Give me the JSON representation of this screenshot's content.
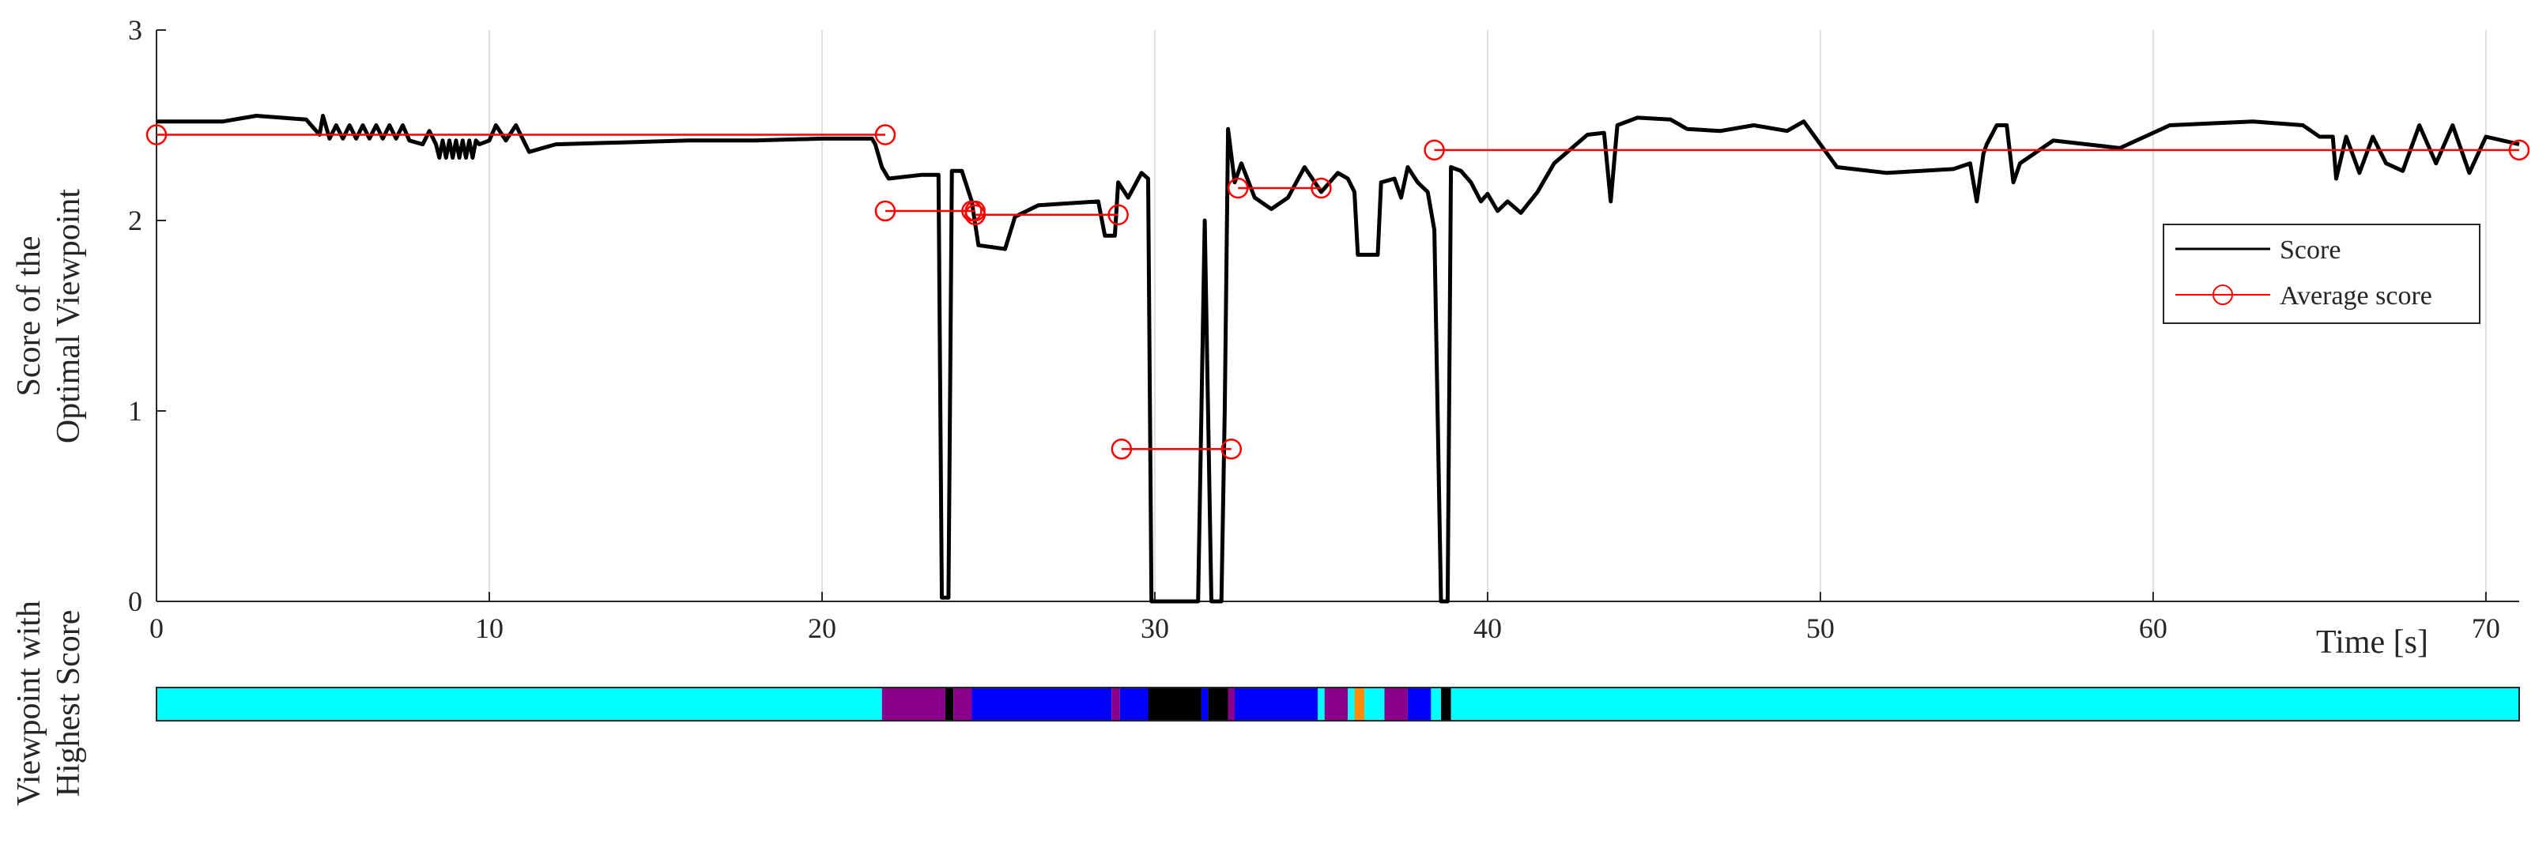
{
  "chart_data": {
    "type": "line",
    "xlabel": "Time [s]",
    "ylabel_lines": [
      "Score of the",
      "Optimal Viewpoint"
    ],
    "bar_label_lines": [
      "Viewpoint with",
      "Highest Score"
    ],
    "xlim": [
      0,
      71
    ],
    "ylim": [
      0,
      3
    ],
    "x_ticks": [
      0,
      10,
      20,
      30,
      40,
      50,
      60,
      70
    ],
    "y_ticks": [
      0,
      1,
      2,
      3
    ],
    "grid_x": true,
    "legend": {
      "placement": "right",
      "entries": [
        "Score",
        "Average score"
      ]
    },
    "series": [
      {
        "name": "Score",
        "color": "#000000",
        "points": [
          [
            0,
            2.52
          ],
          [
            2,
            2.52
          ],
          [
            3,
            2.55
          ],
          [
            4.5,
            2.53
          ],
          [
            4.9,
            2.45
          ],
          [
            5,
            2.55
          ],
          [
            5.2,
            2.43
          ],
          [
            5.4,
            2.5
          ],
          [
            5.6,
            2.43
          ],
          [
            5.8,
            2.5
          ],
          [
            6,
            2.43
          ],
          [
            6.2,
            2.5
          ],
          [
            6.4,
            2.43
          ],
          [
            6.6,
            2.5
          ],
          [
            6.8,
            2.43
          ],
          [
            7,
            2.5
          ],
          [
            7.2,
            2.43
          ],
          [
            7.4,
            2.5
          ],
          [
            7.6,
            2.42
          ],
          [
            8,
            2.4
          ],
          [
            8.2,
            2.47
          ],
          [
            8.4,
            2.4
          ],
          [
            8.5,
            2.33
          ],
          [
            8.6,
            2.42
          ],
          [
            8.7,
            2.33
          ],
          [
            8.8,
            2.42
          ],
          [
            8.9,
            2.33
          ],
          [
            9,
            2.42
          ],
          [
            9.1,
            2.33
          ],
          [
            9.2,
            2.42
          ],
          [
            9.3,
            2.33
          ],
          [
            9.4,
            2.42
          ],
          [
            9.5,
            2.33
          ],
          [
            9.6,
            2.42
          ],
          [
            9.7,
            2.4
          ],
          [
            10,
            2.42
          ],
          [
            10.2,
            2.5
          ],
          [
            10.5,
            2.42
          ],
          [
            10.8,
            2.5
          ],
          [
            11.2,
            2.36
          ],
          [
            12,
            2.4
          ],
          [
            14,
            2.41
          ],
          [
            16,
            2.42
          ],
          [
            18,
            2.42
          ],
          [
            20,
            2.43
          ],
          [
            21.5,
            2.43
          ],
          [
            21.6,
            2.4
          ],
          [
            21.8,
            2.28
          ],
          [
            22,
            2.22
          ],
          [
            23,
            2.24
          ],
          [
            23.5,
            2.24
          ],
          [
            23.6,
            0.02
          ],
          [
            23.8,
            0.02
          ],
          [
            23.9,
            2.26
          ],
          [
            24.2,
            2.26
          ],
          [
            24.5,
            2.1
          ],
          [
            24.7,
            1.87
          ],
          [
            25.5,
            1.85
          ],
          [
            25.8,
            2.02
          ],
          [
            26.5,
            2.08
          ],
          [
            28.3,
            2.1
          ],
          [
            28.5,
            1.92
          ],
          [
            28.8,
            1.92
          ],
          [
            28.9,
            2.2
          ],
          [
            29.2,
            2.12
          ],
          [
            29.6,
            2.25
          ],
          [
            29.8,
            2.22
          ],
          [
            29.9,
            0
          ],
          [
            31.3,
            0
          ],
          [
            31.5,
            2.0
          ],
          [
            31.7,
            0
          ],
          [
            32,
            0
          ],
          [
            32.1,
            1.0
          ],
          [
            32.2,
            2.48
          ],
          [
            32.4,
            2.2
          ],
          [
            32.6,
            2.3
          ],
          [
            33,
            2.12
          ],
          [
            33.5,
            2.06
          ],
          [
            34,
            2.12
          ],
          [
            34.5,
            2.28
          ],
          [
            35,
            2.15
          ],
          [
            35.5,
            2.25
          ],
          [
            35.8,
            2.22
          ],
          [
            36,
            2.15
          ],
          [
            36.1,
            1.82
          ],
          [
            36.7,
            1.82
          ],
          [
            36.8,
            2.2
          ],
          [
            37.2,
            2.22
          ],
          [
            37.4,
            2.12
          ],
          [
            37.6,
            2.28
          ],
          [
            37.9,
            2.2
          ],
          [
            38.2,
            2.15
          ],
          [
            38.4,
            1.95
          ],
          [
            38.6,
            0
          ],
          [
            38.8,
            0
          ],
          [
            38.9,
            2.28
          ],
          [
            39.2,
            2.26
          ],
          [
            39.5,
            2.2
          ],
          [
            39.8,
            2.1
          ],
          [
            40,
            2.14
          ],
          [
            40.3,
            2.05
          ],
          [
            40.6,
            2.1
          ],
          [
            41,
            2.04
          ],
          [
            41.5,
            2.15
          ],
          [
            42,
            2.3
          ],
          [
            43,
            2.45
          ],
          [
            43.5,
            2.46
          ],
          [
            43.7,
            2.1
          ],
          [
            43.9,
            2.5
          ],
          [
            44.5,
            2.54
          ],
          [
            45.5,
            2.53
          ],
          [
            46,
            2.48
          ],
          [
            47,
            2.47
          ],
          [
            48,
            2.5
          ],
          [
            49,
            2.47
          ],
          [
            49.5,
            2.52
          ],
          [
            50,
            2.4
          ],
          [
            50.5,
            2.28
          ],
          [
            52,
            2.25
          ],
          [
            54,
            2.27
          ],
          [
            54.5,
            2.3
          ],
          [
            54.7,
            2.1
          ],
          [
            54.9,
            2.35
          ],
          [
            55,
            2.4
          ],
          [
            55.3,
            2.5
          ],
          [
            55.6,
            2.5
          ],
          [
            55.8,
            2.2
          ],
          [
            56,
            2.3
          ],
          [
            57,
            2.42
          ],
          [
            59,
            2.38
          ],
          [
            60.5,
            2.5
          ],
          [
            63,
            2.52
          ],
          [
            64.5,
            2.5
          ],
          [
            65,
            2.44
          ],
          [
            65.4,
            2.44
          ],
          [
            65.5,
            2.22
          ],
          [
            65.8,
            2.44
          ],
          [
            66.2,
            2.25
          ],
          [
            66.6,
            2.44
          ],
          [
            67,
            2.3
          ],
          [
            67.5,
            2.26
          ],
          [
            68,
            2.5
          ],
          [
            68.5,
            2.3
          ],
          [
            69,
            2.5
          ],
          [
            69.5,
            2.25
          ],
          [
            70,
            2.44
          ],
          [
            71,
            2.4
          ]
        ]
      },
      {
        "name": "Average score",
        "color": "#ff0000",
        "segments": [
          [
            [
              0,
              2.45
            ],
            [
              21.9,
              2.45
            ]
          ],
          [
            [
              21.9,
              2.05
            ],
            [
              24.6,
              2.05
            ]
          ],
          [
            [
              24.6,
              2.03
            ],
            [
              28.9,
              2.03
            ]
          ],
          [
            [
              29.0,
              0.8
            ],
            [
              32.3,
              0.8
            ]
          ],
          [
            [
              32.5,
              2.17
            ],
            [
              35.0,
              2.17
            ]
          ],
          [
            [
              38.4,
              2.37
            ],
            [
              71,
              2.37
            ]
          ]
        ],
        "extra_markers": [
          [
            24.5,
            2.05
          ],
          [
            24.6,
            2.03
          ]
        ]
      }
    ],
    "viewpoint_bar": [
      {
        "from": 0,
        "to": 21.8,
        "color": "#00ffff"
      },
      {
        "from": 21.8,
        "to": 23.7,
        "color": "#8b008b"
      },
      {
        "from": 23.7,
        "to": 23.95,
        "color": "#000000"
      },
      {
        "from": 23.95,
        "to": 24.5,
        "color": "#8b008b"
      },
      {
        "from": 24.5,
        "to": 28.7,
        "color": "#0000ff"
      },
      {
        "from": 28.7,
        "to": 28.95,
        "color": "#8b008b"
      },
      {
        "from": 28.95,
        "to": 29.8,
        "color": "#0000ff"
      },
      {
        "from": 29.8,
        "to": 31.4,
        "color": "#000000"
      },
      {
        "from": 31.4,
        "to": 31.6,
        "color": "#0000ff"
      },
      {
        "from": 31.6,
        "to": 32.2,
        "color": "#000000"
      },
      {
        "from": 32.2,
        "to": 32.4,
        "color": "#8b008b"
      },
      {
        "from": 32.4,
        "to": 34.9,
        "color": "#0000ff"
      },
      {
        "from": 34.9,
        "to": 35.1,
        "color": "#00ffff"
      },
      {
        "from": 35.1,
        "to": 35.8,
        "color": "#8b008b"
      },
      {
        "from": 35.8,
        "to": 36.0,
        "color": "#00ffff"
      },
      {
        "from": 36.0,
        "to": 36.3,
        "color": "#ff8c00"
      },
      {
        "from": 36.3,
        "to": 36.9,
        "color": "#00ffff"
      },
      {
        "from": 36.9,
        "to": 37.6,
        "color": "#8b008b"
      },
      {
        "from": 37.6,
        "to": 38.3,
        "color": "#0000ff"
      },
      {
        "from": 38.3,
        "to": 38.6,
        "color": "#00ffff"
      },
      {
        "from": 38.6,
        "to": 38.9,
        "color": "#000000"
      },
      {
        "from": 38.9,
        "to": 71,
        "color": "#00ffff"
      }
    ]
  }
}
